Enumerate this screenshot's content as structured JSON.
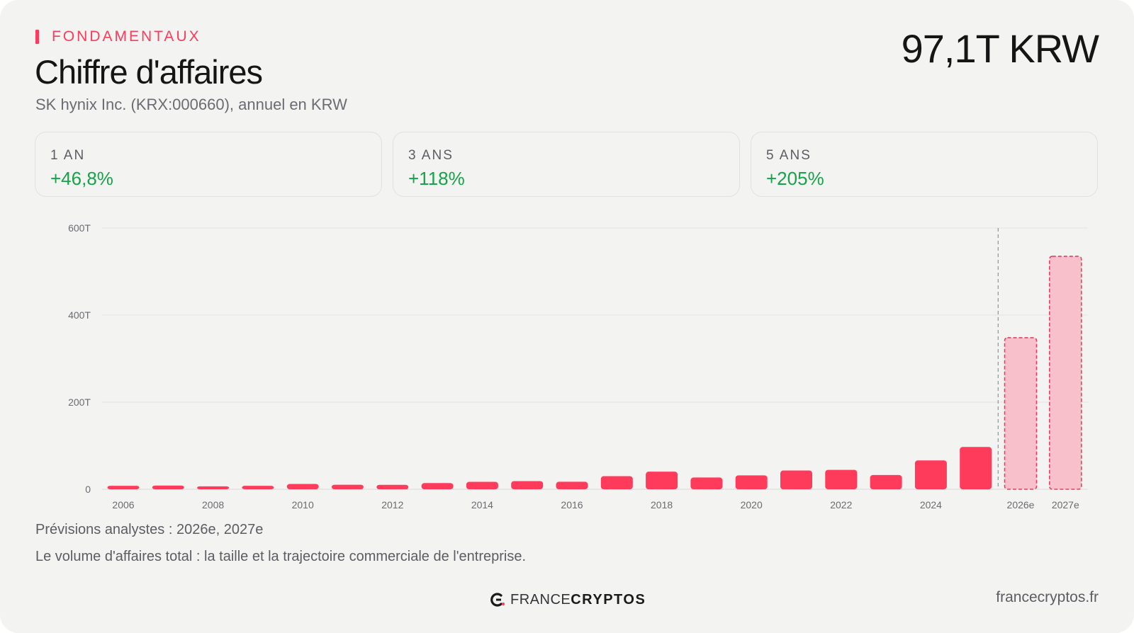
{
  "header": {
    "eyebrow": "FONDAMENTAUX",
    "title": "Chiffre d'affaires",
    "subtitle": "SK hynix Inc. (KRX:000660), annuel en KRW",
    "headline_value": "97,1T KRW"
  },
  "stats": [
    {
      "label": "1 AN",
      "value": "+46,8%"
    },
    {
      "label": "3 ANS",
      "value": "+118%"
    },
    {
      "label": "5 ANS",
      "value": "+205%"
    }
  ],
  "notes": {
    "forecast": "Prévisions analystes : 2026e, 2027e",
    "description": "Le volume d'affaires total : la taille et la trajectoire commerciale de l'entreprise."
  },
  "footer": {
    "logo_light": "FRANCE",
    "logo_bold": "CRYPTOS",
    "url": "francecryptos.fr"
  },
  "colors": {
    "accent": "#ff3b5c",
    "positive": "#16a34a",
    "forecast_fill": "#f7c0ca",
    "forecast_stroke": "#e8405f"
  },
  "chart_data": {
    "type": "bar",
    "categories": [
      "2006",
      "2007",
      "2008",
      "2009",
      "2010",
      "2011",
      "2012",
      "2013",
      "2014",
      "2015",
      "2016",
      "2017",
      "2018",
      "2019",
      "2020",
      "2021",
      "2022",
      "2023",
      "2024",
      "2025",
      "2026e",
      "2027e"
    ],
    "x_tick_labels": [
      "2006",
      "2008",
      "2010",
      "2012",
      "2014",
      "2016",
      "2018",
      "2020",
      "2022",
      "2024",
      "2026e",
      "2027e"
    ],
    "values": [
      8,
      8.5,
      6.8,
      7.9,
      12.1,
      10.4,
      10.2,
      14.2,
      17.1,
      18.8,
      17.2,
      30.1,
      40.4,
      27.0,
      31.9,
      43.0,
      44.6,
      32.8,
      66.2,
      97.1,
      348,
      535
    ],
    "forecast": [
      false,
      false,
      false,
      false,
      false,
      false,
      false,
      false,
      false,
      false,
      false,
      false,
      false,
      false,
      false,
      false,
      false,
      false,
      false,
      false,
      true,
      true
    ],
    "y_ticks": [
      0,
      200,
      400,
      600
    ],
    "y_tick_labels": [
      "0",
      "200T",
      "400T",
      "600T"
    ],
    "ylim": [
      0,
      600
    ],
    "unit": "T KRW",
    "forecast_divider": "between 2025 and 2026e",
    "grid": true
  }
}
